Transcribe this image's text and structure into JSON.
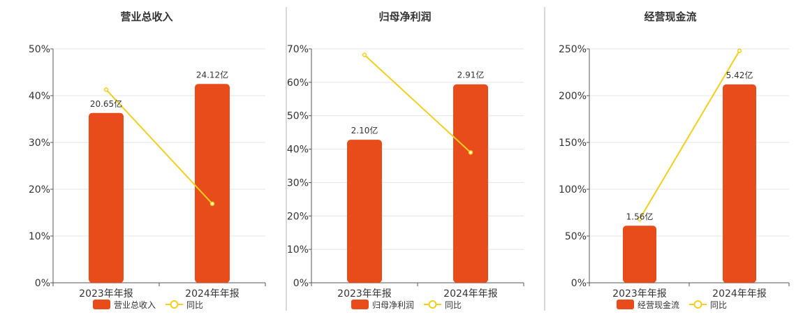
{
  "chart_data": [
    {
      "type": "bar",
      "title": "营业总收入",
      "categories": [
        "2023年年报",
        "2024年年报"
      ],
      "series": [
        {
          "name": "营业总收入",
          "type": "bar",
          "values": [
            36.3,
            42.5
          ],
          "labels": [
            "20.65亿",
            "24.12亿"
          ],
          "color": "#e84c1b"
        },
        {
          "name": "同比",
          "type": "line",
          "values": [
            41.3,
            16.9
          ],
          "color": "#f0cf1e"
        }
      ],
      "ylim": [
        0,
        50
      ],
      "yticks": [
        "0%",
        "10%",
        "20%",
        "30%",
        "40%",
        "50%"
      ],
      "grid": true,
      "legend": "bottom"
    },
    {
      "type": "bar",
      "title": "归母净利润",
      "categories": [
        "2023年年报",
        "2024年年报"
      ],
      "series": [
        {
          "name": "归母净利润",
          "type": "bar",
          "values": [
            42.8,
            59.4
          ],
          "labels": [
            "2.10亿",
            "2.91亿"
          ],
          "color": "#e84c1b"
        },
        {
          "name": "同比",
          "type": "line",
          "values": [
            68.2,
            39.0
          ],
          "color": "#f0cf1e"
        }
      ],
      "ylim": [
        0,
        70
      ],
      "yticks": [
        "0%",
        "10%",
        "20%",
        "30%",
        "40%",
        "50%",
        "60%",
        "70%"
      ],
      "grid": true,
      "legend": "bottom"
    },
    {
      "type": "bar",
      "title": "经营现金流",
      "categories": [
        "2023年年报",
        "2024年年报"
      ],
      "series": [
        {
          "name": "经营现金流",
          "type": "bar",
          "values": [
            61,
            212
          ],
          "labels": [
            "1.56亿",
            "5.42亿"
          ],
          "color": "#e84c1b"
        },
        {
          "name": "同比",
          "type": "line",
          "values": [
            68,
            248
          ],
          "color": "#f0cf1e"
        }
      ],
      "ylim": [
        0,
        250
      ],
      "yticks": [
        "0%",
        "50%",
        "100%",
        "150%",
        "200%",
        "250%"
      ],
      "grid": true,
      "legend": "bottom"
    }
  ]
}
